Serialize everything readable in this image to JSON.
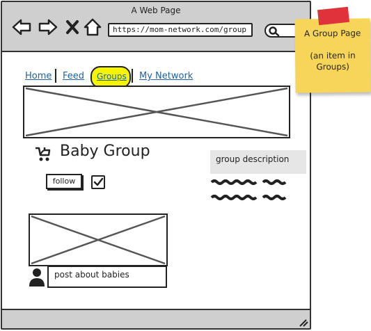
{
  "browser": {
    "title": "A Web Page",
    "url": "https://mom-network.com/group"
  },
  "nav": {
    "items": [
      {
        "label": "Home"
      },
      {
        "label": "Feed"
      },
      {
        "label": "Groups",
        "active": true
      },
      {
        "label": "My Network"
      }
    ]
  },
  "group": {
    "title": "Baby Group",
    "follow_label": "follow",
    "follow_checked": true,
    "description_label": "group description"
  },
  "post": {
    "text": "post about babies"
  },
  "note": {
    "line1": "A Group Page",
    "line2": "(an item in",
    "line3": "Groups)"
  },
  "colors": {
    "link": "#1f62a6",
    "highlight": "#f5f500",
    "sticky": "#f7d558",
    "tape": "#e0323a",
    "chrome": "#cfcfcf"
  }
}
